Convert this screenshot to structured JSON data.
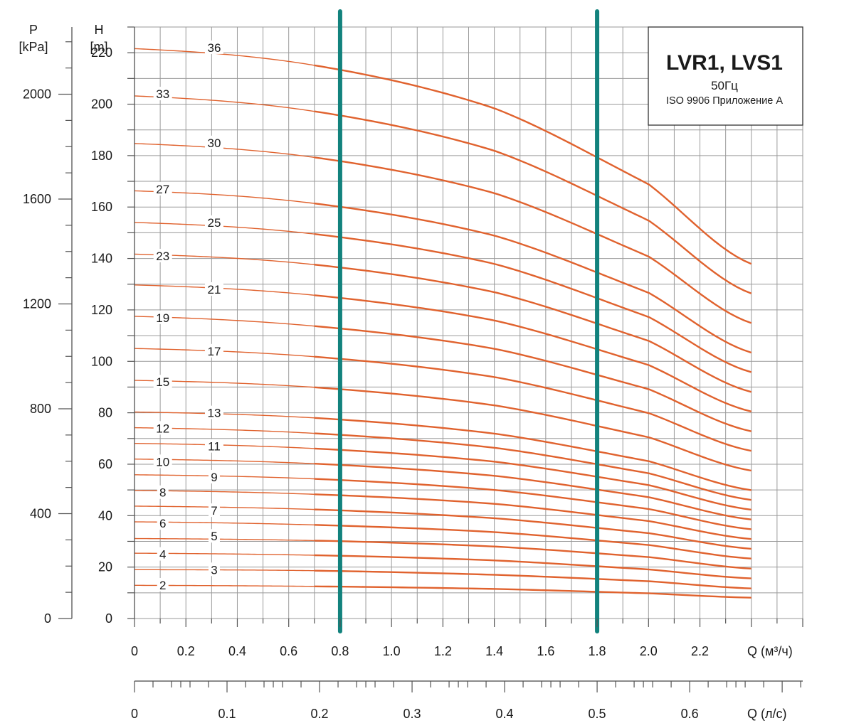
{
  "chart_data": {
    "type": "line",
    "title": "LVR1, LVS1",
    "subtitle_freq": "50Гц",
    "subtitle_standard": "ISO 9906 Приложение А",
    "y_axis": {
      "label_line1": "H",
      "label_line2": "[m]",
      "range": [
        0,
        230
      ],
      "ticks": [
        "0",
        "20",
        "40",
        "60",
        "80",
        "100",
        "120",
        "140",
        "160",
        "180",
        "200",
        "220"
      ]
    },
    "y2_axis": {
      "label_line1": "P",
      "label_line2": "[kPa]",
      "ticks": [
        "0",
        "400",
        "800",
        "1200",
        "1600",
        "2000"
      ]
    },
    "x_axis": {
      "label": "Q (м³/ч)",
      "range": [
        0,
        2.6
      ],
      "ticks": [
        "0",
        "0.2",
        "0.4",
        "0.6",
        "0.8",
        "1.0",
        "1.2",
        "1.4",
        "1.6",
        "1.8",
        "2.0",
        "2.2"
      ]
    },
    "x2_axis": {
      "label": "Q (л/с)",
      "ticks": [
        "0",
        "0.1",
        "0.2",
        "0.3",
        "0.4",
        "0.5",
        "0.6"
      ]
    },
    "grid": true,
    "markers_q": [
      0.8,
      1.8
    ],
    "series": [
      {
        "name": "2",
        "values": [
          {
            "x": 0,
            "y": 12.9
          },
          {
            "x": 0.7,
            "y": 12.5
          },
          {
            "x": 1.4,
            "y": 11.5
          },
          {
            "x": 2.0,
            "y": 9.8
          },
          {
            "x": 2.4,
            "y": 8.1
          }
        ]
      },
      {
        "name": "3",
        "values": [
          {
            "x": 0,
            "y": 19.0
          },
          {
            "x": 0.7,
            "y": 18.6
          },
          {
            "x": 1.4,
            "y": 17.0
          },
          {
            "x": 2.0,
            "y": 14.5
          },
          {
            "x": 2.4,
            "y": 11.7
          }
        ]
      },
      {
        "name": "4",
        "values": [
          {
            "x": 0,
            "y": 25.4
          },
          {
            "x": 0.7,
            "y": 24.6
          },
          {
            "x": 1.4,
            "y": 22.6
          },
          {
            "x": 2.0,
            "y": 19.1
          },
          {
            "x": 2.4,
            "y": 15.6
          }
        ]
      },
      {
        "name": "5",
        "values": [
          {
            "x": 0,
            "y": 31.1
          },
          {
            "x": 0.7,
            "y": 30.3
          },
          {
            "x": 1.4,
            "y": 28.0
          },
          {
            "x": 2.0,
            "y": 23.9
          },
          {
            "x": 2.4,
            "y": 19.4
          }
        ]
      },
      {
        "name": "6",
        "values": [
          {
            "x": 0,
            "y": 37.6
          },
          {
            "x": 0.7,
            "y": 36.4
          },
          {
            "x": 1.4,
            "y": 33.6
          },
          {
            "x": 2.0,
            "y": 28.6
          },
          {
            "x": 2.4,
            "y": 23.3
          }
        ]
      },
      {
        "name": "7",
        "values": [
          {
            "x": 0,
            "y": 43.7
          },
          {
            "x": 0.7,
            "y": 42.4
          },
          {
            "x": 1.4,
            "y": 39.0
          },
          {
            "x": 2.0,
            "y": 33.2
          },
          {
            "x": 2.4,
            "y": 27.1
          }
        ]
      },
      {
        "name": "8",
        "values": [
          {
            "x": 0,
            "y": 49.8
          },
          {
            "x": 0.7,
            "y": 48.3
          },
          {
            "x": 1.4,
            "y": 44.6
          },
          {
            "x": 2.0,
            "y": 37.9
          },
          {
            "x": 2.4,
            "y": 30.9
          }
        ]
      },
      {
        "name": "9",
        "values": [
          {
            "x": 0,
            "y": 55.9
          },
          {
            "x": 0.7,
            "y": 54.3
          },
          {
            "x": 1.4,
            "y": 50.0
          },
          {
            "x": 2.0,
            "y": 42.6
          },
          {
            "x": 2.4,
            "y": 34.7
          }
        ]
      },
      {
        "name": "10",
        "values": [
          {
            "x": 0,
            "y": 62.0
          },
          {
            "x": 0.7,
            "y": 60.2
          },
          {
            "x": 1.4,
            "y": 55.5
          },
          {
            "x": 2.0,
            "y": 47.2
          },
          {
            "x": 2.4,
            "y": 38.5
          }
        ]
      },
      {
        "name": "11",
        "values": [
          {
            "x": 0,
            "y": 68.1
          },
          {
            "x": 0.7,
            "y": 66.1
          },
          {
            "x": 1.4,
            "y": 61.0
          },
          {
            "x": 2.0,
            "y": 51.9
          },
          {
            "x": 2.4,
            "y": 42.3
          }
        ]
      },
      {
        "name": "12",
        "values": [
          {
            "x": 0,
            "y": 74.2
          },
          {
            "x": 0.7,
            "y": 72.0
          },
          {
            "x": 1.4,
            "y": 66.4
          },
          {
            "x": 2.0,
            "y": 56.5
          },
          {
            "x": 2.4,
            "y": 46.1
          }
        ]
      },
      {
        "name": "13",
        "values": [
          {
            "x": 0,
            "y": 80.3
          },
          {
            "x": 0.7,
            "y": 78.0
          },
          {
            "x": 1.4,
            "y": 71.9
          },
          {
            "x": 2.0,
            "y": 61.2
          },
          {
            "x": 2.4,
            "y": 49.9
          }
        ]
      },
      {
        "name": "15",
        "values": [
          {
            "x": 0,
            "y": 92.6
          },
          {
            "x": 0.7,
            "y": 89.9
          },
          {
            "x": 1.4,
            "y": 82.9
          },
          {
            "x": 2.0,
            "y": 70.5
          },
          {
            "x": 2.4,
            "y": 57.5
          }
        ]
      },
      {
        "name": "17",
        "values": [
          {
            "x": 0,
            "y": 105.0
          },
          {
            "x": 0.7,
            "y": 101.8
          },
          {
            "x": 1.4,
            "y": 93.9
          },
          {
            "x": 2.0,
            "y": 79.9
          },
          {
            "x": 2.4,
            "y": 65.2
          }
        ]
      },
      {
        "name": "19",
        "values": [
          {
            "x": 0,
            "y": 117.5
          },
          {
            "x": 0.7,
            "y": 113.7
          },
          {
            "x": 1.4,
            "y": 104.9
          },
          {
            "x": 2.0,
            "y": 89.2
          },
          {
            "x": 2.4,
            "y": 72.8
          }
        ]
      },
      {
        "name": "21",
        "values": [
          {
            "x": 0,
            "y": 129.7
          },
          {
            "x": 0.7,
            "y": 125.7
          },
          {
            "x": 1.4,
            "y": 115.9
          },
          {
            "x": 2.0,
            "y": 98.6
          },
          {
            "x": 2.4,
            "y": 80.5
          }
        ]
      },
      {
        "name": "23",
        "values": [
          {
            "x": 0,
            "y": 141.7
          },
          {
            "x": 0.7,
            "y": 137.6
          },
          {
            "x": 1.4,
            "y": 126.9
          },
          {
            "x": 2.0,
            "y": 108.0
          },
          {
            "x": 2.4,
            "y": 88.1
          }
        ]
      },
      {
        "name": "25",
        "values": [
          {
            "x": 0,
            "y": 154.0
          },
          {
            "x": 0.7,
            "y": 149.5
          },
          {
            "x": 1.4,
            "y": 137.9
          },
          {
            "x": 2.0,
            "y": 117.3
          },
          {
            "x": 2.4,
            "y": 95.8
          }
        ]
      },
      {
        "name": "27",
        "values": [
          {
            "x": 0,
            "y": 166.3
          },
          {
            "x": 0.7,
            "y": 161.4
          },
          {
            "x": 1.4,
            "y": 148.9
          },
          {
            "x": 2.0,
            "y": 126.7
          },
          {
            "x": 2.4,
            "y": 103.4
          }
        ]
      },
      {
        "name": "30",
        "values": [
          {
            "x": 0,
            "y": 184.7
          },
          {
            "x": 0.7,
            "y": 179.3
          },
          {
            "x": 1.4,
            "y": 165.4
          },
          {
            "x": 2.0,
            "y": 140.8
          },
          {
            "x": 2.4,
            "y": 114.9
          }
        ]
      },
      {
        "name": "33",
        "values": [
          {
            "x": 0,
            "y": 203.2
          },
          {
            "x": 0.7,
            "y": 197.2
          },
          {
            "x": 1.4,
            "y": 181.9
          },
          {
            "x": 2.0,
            "y": 154.8
          },
          {
            "x": 2.4,
            "y": 126.4
          }
        ]
      },
      {
        "name": "36",
        "values": [
          {
            "x": 0,
            "y": 221.6
          },
          {
            "x": 0.7,
            "y": 215.1
          },
          {
            "x": 1.4,
            "y": 198.4
          },
          {
            "x": 2.0,
            "y": 168.9
          },
          {
            "x": 2.4,
            "y": 137.9
          }
        ]
      }
    ],
    "stage_labels": [
      {
        "text": "36",
        "x": 0.31,
        "y": 222
      },
      {
        "text": "33",
        "x": 0.11,
        "y": 204
      },
      {
        "text": "30",
        "x": 0.31,
        "y": 185
      },
      {
        "text": "27",
        "x": 0.11,
        "y": 167
      },
      {
        "text": "25",
        "x": 0.31,
        "y": 154
      },
      {
        "text": "23",
        "x": 0.11,
        "y": 141
      },
      {
        "text": "21",
        "x": 0.31,
        "y": 128
      },
      {
        "text": "19",
        "x": 0.11,
        "y": 117
      },
      {
        "text": "17",
        "x": 0.31,
        "y": 104
      },
      {
        "text": "15",
        "x": 0.11,
        "y": 92
      },
      {
        "text": "13",
        "x": 0.31,
        "y": 80
      },
      {
        "text": "12",
        "x": 0.11,
        "y": 74
      },
      {
        "text": "11",
        "x": 0.31,
        "y": 67
      },
      {
        "text": "10",
        "x": 0.11,
        "y": 61
      },
      {
        "text": "9",
        "x": 0.31,
        "y": 55
      },
      {
        "text": "8",
        "x": 0.11,
        "y": 49
      },
      {
        "text": "7",
        "x": 0.31,
        "y": 42
      },
      {
        "text": "6",
        "x": 0.11,
        "y": 37
      },
      {
        "text": "5",
        "x": 0.31,
        "y": 32
      },
      {
        "text": "4",
        "x": 0.11,
        "y": 25
      },
      {
        "text": "3",
        "x": 0.31,
        "y": 19
      },
      {
        "text": "2",
        "x": 0.11,
        "y": 13
      }
    ],
    "colors": {
      "curve": "#e0622e",
      "marker": "#12827d",
      "grid": "#9a9a9a"
    }
  }
}
